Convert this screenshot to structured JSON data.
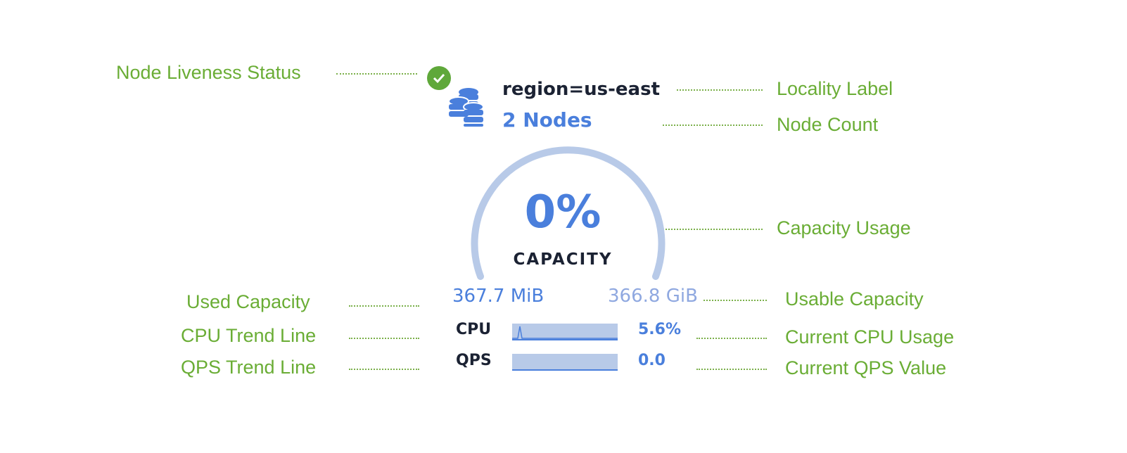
{
  "annotations": {
    "liveness": "Node Liveness Status",
    "locality": "Locality Label",
    "node_count": "Node Count",
    "capacity_usage": "Capacity Usage",
    "used_capacity": "Used Capacity",
    "usable_capacity": "Usable Capacity",
    "cpu_trend": "CPU Trend Line",
    "current_cpu": "Current CPU Usage",
    "qps_trend": "QPS Trend Line",
    "current_qps": "Current QPS Value"
  },
  "widget": {
    "status": "live",
    "locality": "region=us-east",
    "nodes": "2 Nodes",
    "capacity_percent": "0%",
    "capacity_label": "CAPACITY",
    "used": "367.7 MiB",
    "usable": "366.8 GiB",
    "cpu_label": "CPU",
    "cpu_value": "5.6%",
    "qps_label": "QPS",
    "qps_value": "0.0"
  },
  "colors": {
    "annotation": "#6aad35",
    "accent": "#4a7fdc",
    "gauge_track": "#b8cae8",
    "status_ok": "#5fa83a"
  }
}
